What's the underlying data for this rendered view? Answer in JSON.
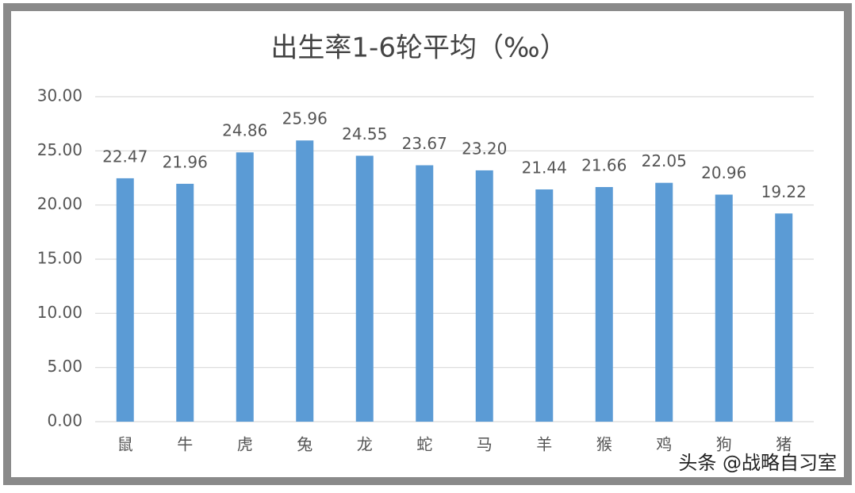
{
  "chart_data": {
    "type": "bar",
    "title": "出生率1-6轮平均（‰）",
    "categories": [
      "鼠",
      "牛",
      "虎",
      "兔",
      "龙",
      "蛇",
      "马",
      "羊",
      "猴",
      "鸡",
      "狗",
      "猪"
    ],
    "values": [
      22.47,
      21.96,
      24.86,
      25.96,
      24.55,
      23.67,
      23.2,
      21.44,
      21.66,
      22.05,
      20.96,
      19.22
    ],
    "value_labels": [
      "22.47",
      "21.96",
      "24.86",
      "25.96",
      "24.55",
      "23.67",
      "23.20",
      "21.44",
      "21.66",
      "22.05",
      "20.96",
      "19.22"
    ],
    "color": "#5b9bd5",
    "ylim": [
      0,
      30
    ],
    "yticks": [
      {
        "value": 0,
        "label": "0.00"
      },
      {
        "value": 5,
        "label": "5.00"
      },
      {
        "value": 10,
        "label": "10.00"
      },
      {
        "value": 15,
        "label": "15.00"
      },
      {
        "value": 20,
        "label": "20.00"
      },
      {
        "value": 25,
        "label": "25.00"
      },
      {
        "value": 30,
        "label": "30.00"
      }
    ],
    "grid": true,
    "watermark": "头条 @战略自习室"
  }
}
